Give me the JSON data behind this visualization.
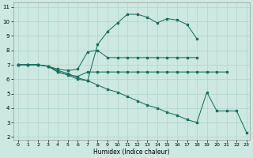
{
  "xlabel": "Humidex (Indice chaleur)",
  "bg_color": "#cce8e0",
  "line_color": "#1a7060",
  "grid_color": "#aed4cc",
  "xlim": [
    -0.5,
    23.3
  ],
  "ylim": [
    1.8,
    11.3
  ],
  "xticks": [
    0,
    1,
    2,
    3,
    4,
    5,
    6,
    7,
    8,
    9,
    10,
    11,
    12,
    13,
    14,
    15,
    16,
    17,
    18,
    19,
    20,
    21,
    22,
    23
  ],
  "yticks": [
    2,
    3,
    4,
    5,
    6,
    7,
    8,
    9,
    10,
    11
  ],
  "line1_x": [
    0,
    1,
    2,
    3,
    4,
    5,
    6,
    7,
    8,
    9,
    10,
    11,
    12,
    13,
    14,
    15,
    16,
    17,
    18
  ],
  "line1_y": [
    7.0,
    7.0,
    7.0,
    6.9,
    6.5,
    6.3,
    6.0,
    5.9,
    8.4,
    9.3,
    9.9,
    10.5,
    10.5,
    10.3,
    9.9,
    10.2,
    10.1,
    9.8,
    8.8
  ],
  "line2_x": [
    0,
    1,
    2,
    3,
    4,
    5,
    6,
    7,
    8,
    9,
    10,
    11,
    12,
    13,
    14,
    15,
    16,
    17,
    18
  ],
  "line2_y": [
    7.0,
    7.0,
    7.0,
    6.9,
    6.7,
    6.6,
    6.7,
    7.9,
    8.0,
    7.5,
    7.5,
    7.5,
    7.5,
    7.5,
    7.5,
    7.5,
    7.5,
    7.5,
    7.5
  ],
  "line3_x": [
    0,
    1,
    2,
    3,
    4,
    5,
    6,
    7,
    8,
    9,
    10,
    11,
    12,
    13,
    14,
    15,
    16,
    17,
    18,
    19,
    20,
    21
  ],
  "line3_y": [
    7.0,
    7.0,
    7.0,
    6.9,
    6.5,
    6.3,
    6.2,
    6.5,
    6.5,
    6.5,
    6.5,
    6.5,
    6.5,
    6.5,
    6.5,
    6.5,
    6.5,
    6.5,
    6.5,
    6.5,
    6.5,
    6.5
  ],
  "line4_x": [
    0,
    1,
    2,
    3,
    4,
    5,
    6,
    7,
    8,
    9,
    10,
    11,
    12,
    13,
    14,
    15,
    16,
    17,
    18,
    19,
    20,
    21,
    22,
    23
  ],
  "line4_y": [
    7.0,
    7.0,
    7.0,
    6.9,
    6.6,
    6.4,
    6.1,
    5.9,
    5.6,
    5.3,
    5.1,
    4.8,
    4.5,
    4.2,
    4.0,
    3.7,
    3.5,
    3.2,
    3.0,
    5.1,
    3.8,
    3.8,
    3.8,
    2.3
  ]
}
